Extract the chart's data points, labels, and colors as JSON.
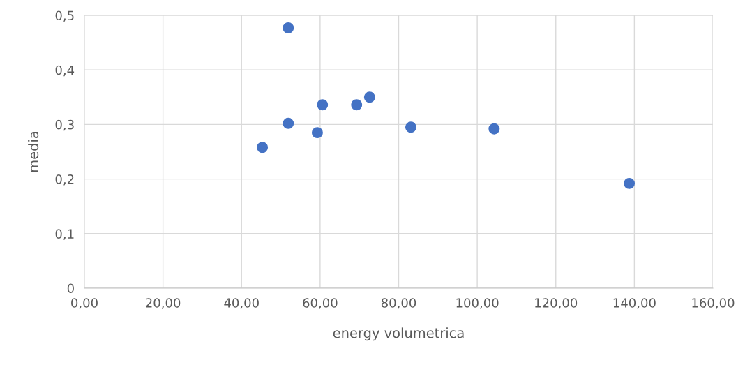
{
  "chart_data": {
    "type": "scatter",
    "xlabel": "energy volumetrica",
    "ylabel": "media",
    "x": [
      51.9,
      51.9,
      45.3,
      59.3,
      60.6,
      69.3,
      72.6,
      83.1,
      104.3,
      138.7
    ],
    "series": [
      {
        "color": "#4472c4",
        "values": [
          0.477,
          0.302,
          0.258,
          0.285,
          0.336,
          0.336,
          0.35,
          0.295,
          0.292,
          0.192
        ]
      }
    ],
    "xlim": [
      0,
      160
    ],
    "ylim": [
      0,
      0.5
    ],
    "xticks": [
      {
        "value": 0,
        "label": "0,00"
      },
      {
        "value": 20,
        "label": "20,00"
      },
      {
        "value": 40,
        "label": "40,00"
      },
      {
        "value": 60,
        "label": "60,00"
      },
      {
        "value": 80,
        "label": "80,00"
      },
      {
        "value": 100,
        "label": "100,00"
      },
      {
        "value": 120,
        "label": "120,00"
      },
      {
        "value": 140,
        "label": "140,00"
      },
      {
        "value": 160,
        "label": "160,00"
      }
    ],
    "yticks": [
      0,
      {
        "value": 0.1,
        "label": "0,1"
      },
      {
        "value": 0.2,
        "label": "0,2"
      },
      {
        "value": 0.3,
        "label": "0,3"
      },
      {
        "value": 0.4,
        "label": "0,4"
      },
      {
        "value": 0.5,
        "label": "0,5"
      }
    ],
    "grid": true,
    "marker": "circle"
  }
}
